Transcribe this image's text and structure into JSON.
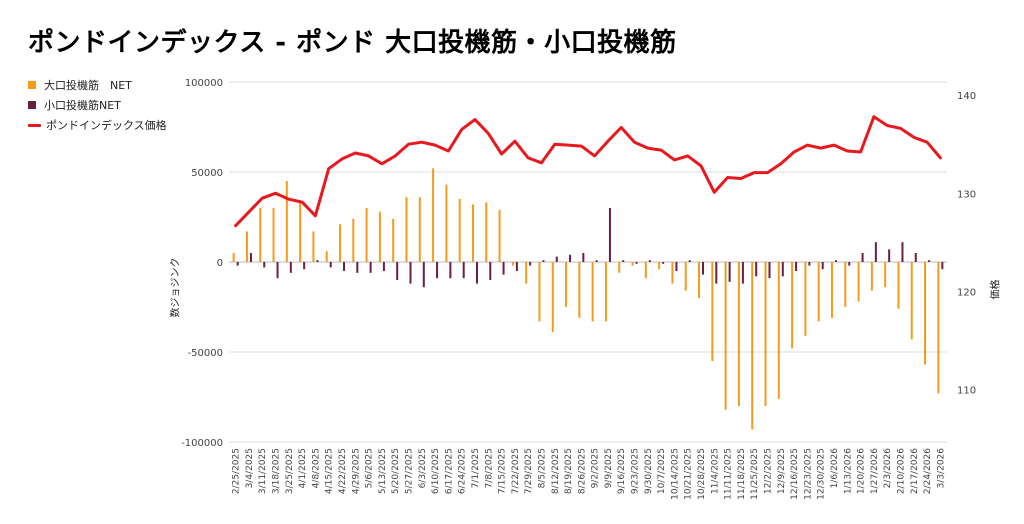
{
  "title": "ポンドインデックス - ポンド 大口投機筋・小口投機筋",
  "legend": {
    "large": "大口投機筋　NET",
    "small": "小口投機筋NET",
    "price": "ポンドインデックス価格"
  },
  "colors": {
    "large": "#f39c1b",
    "small": "#6b1d45",
    "price": "#e8191e",
    "grid": "#dddddd",
    "axis": "#444444"
  },
  "chart_data": {
    "type": "bar",
    "xlabel": "",
    "ylabel": "数ジョジンク",
    "y2label": "価格",
    "ylim": [
      -100000,
      100000
    ],
    "yticks": [
      -100000,
      -50000,
      0,
      50000,
      100000
    ],
    "ytick_labels": [
      "-100000",
      "-50000",
      "0",
      "50000",
      "100000"
    ],
    "y2lim": [
      104.67,
      141.33
    ],
    "y2ticks": [
      110,
      120,
      130,
      140
    ],
    "grid": true,
    "legend_position": "top-left",
    "categories": [
      "2/25/2025",
      "3/4/2025",
      "3/11/2025",
      "3/18/2025",
      "3/25/2025",
      "4/1/2025",
      "4/8/2025",
      "4/15/2025",
      "4/22/2025",
      "4/29/2025",
      "5/6/2025",
      "5/13/2025",
      "5/20/2025",
      "5/27/2025",
      "6/3/2025",
      "6/10/2025",
      "6/17/2025",
      "6/24/2025",
      "7/1/2025",
      "7/8/2025",
      "7/15/2025",
      "7/22/2025",
      "7/29/2025",
      "8/5/2025",
      "8/12/2025",
      "8/19/2025",
      "8/26/2025",
      "9/2/2025",
      "9/9/2025",
      "9/16/2025",
      "9/23/2025",
      "9/30/2025",
      "10/7/2025",
      "10/14/2025",
      "10/21/2025",
      "10/28/2025",
      "11/4/2025",
      "11/11/2025",
      "11/18/2025",
      "11/25/2025",
      "12/2/2025",
      "12/9/2025",
      "12/16/2025",
      "12/23/2025",
      "12/30/2025",
      "1/6/2026",
      "1/13/2026",
      "1/20/2026",
      "1/27/2026",
      "2/3/2026",
      "2/10/2026",
      "2/17/2026",
      "2/24/2026",
      "3/3/2026"
    ],
    "series": [
      {
        "name": "大口投機筋　NET",
        "type": "bar",
        "values": [
          5000,
          17000,
          30000,
          30000,
          45000,
          34000,
          17000,
          6000,
          21000,
          24000,
          30000,
          28000,
          24000,
          36000,
          36000,
          52000,
          43000,
          35000,
          32000,
          33000,
          29000,
          -2000,
          -12000,
          -33000,
          -39000,
          -25000,
          -31000,
          -33000,
          -33000,
          -6000,
          -2000,
          -9000,
          -4000,
          -12000,
          -16000,
          -20000,
          -55000,
          -82000,
          -80000,
          -93000,
          -80000,
          -76000,
          -48000,
          -41000,
          -33000,
          -31000,
          -25000,
          -22000,
          -16000,
          -14000,
          -26000,
          -43000,
          -57000,
          -73000
        ]
      },
      {
        "name": "小口投機筋NET",
        "type": "bar",
        "values": [
          -2000,
          5000,
          -3000,
          -9000,
          -6000,
          -4000,
          1000,
          -3000,
          -5000,
          -6000,
          -6000,
          -5000,
          -10000,
          -12000,
          -14000,
          -9000,
          -9000,
          -9000,
          -12000,
          -10000,
          -7000,
          -5000,
          -2000,
          1000,
          3000,
          4000,
          5000,
          1000,
          30000,
          1000,
          -1000,
          1000,
          -1000,
          -5000,
          1000,
          -7000,
          -12000,
          -11000,
          -12000,
          -8000,
          -9000,
          -8000,
          -5000,
          -2000,
          -4000,
          1000,
          -2000,
          5000,
          11000,
          7000,
          11000,
          5000,
          1000,
          -4000
        ]
      },
      {
        "name": "ポンドインデックス価格",
        "type": "line",
        "axis": "right",
        "values": [
          126.7,
          128.1,
          129.5,
          130.0,
          129.4,
          129.1,
          127.7,
          132.5,
          133.5,
          134.1,
          133.8,
          133.0,
          133.8,
          135.0,
          135.2,
          134.9,
          134.3,
          136.5,
          137.5,
          136.1,
          134.0,
          135.3,
          133.6,
          133.1,
          135.0,
          134.9,
          134.8,
          133.8,
          135.3,
          136.7,
          135.2,
          134.6,
          134.4,
          133.4,
          133.8,
          132.8,
          130.1,
          131.6,
          131.5,
          132.1,
          132.1,
          133.0,
          134.2,
          134.9,
          134.6,
          134.9,
          134.3,
          134.2,
          137.8,
          136.9,
          136.6,
          135.7,
          135.2,
          133.6
        ]
      }
    ]
  }
}
